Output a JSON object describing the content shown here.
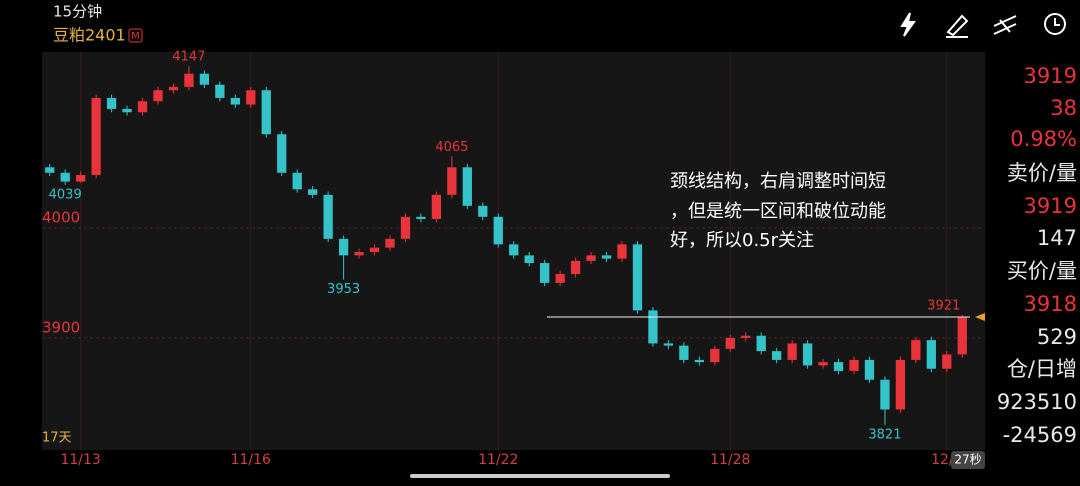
{
  "header": {
    "period": "15分钟",
    "symbol": "豆粕2401",
    "badge": "M"
  },
  "chart_data": {
    "type": "candlestick",
    "categories": [
      null,
      null,
      "11/13",
      null,
      null,
      null,
      null,
      null,
      null,
      null,
      null,
      null,
      null,
      "11/16",
      null,
      null,
      null,
      null,
      null,
      null,
      null,
      null,
      null,
      null,
      null,
      null,
      null,
      null,
      null,
      "11/22",
      null,
      null,
      null,
      null,
      null,
      null,
      null,
      null,
      null,
      null,
      null,
      null,
      null,
      null,
      "11/28",
      null,
      null,
      null,
      null,
      null,
      null,
      null,
      null,
      null,
      null,
      null,
      null,
      null,
      "12/0",
      null
    ],
    "open": [
      4055,
      4050,
      4042,
      4048,
      4118,
      4108,
      4105,
      4115,
      4125,
      4128,
      4140,
      4130,
      4118,
      4112,
      4125,
      4085,
      4050,
      4035,
      4030,
      3990,
      3975,
      3978,
      3982,
      3990,
      4010,
      4008,
      4030,
      4055,
      4020,
      4010,
      3985,
      3975,
      3968,
      3950,
      3958,
      3970,
      3975,
      3972,
      3985,
      3925,
      3895,
      3893,
      3880,
      3878,
      3890,
      3900,
      3902,
      3888,
      3880,
      3895,
      3875,
      3878,
      3870,
      3880,
      3862,
      3835,
      3880,
      3898,
      3872,
      3885
    ],
    "high": [
      4058,
      4053,
      4051,
      4121,
      4121,
      4111,
      4118,
      4128,
      4131,
      4147,
      4143,
      4133,
      4121,
      4128,
      4128,
      4088,
      4053,
      4038,
      4033,
      3993,
      3981,
      3985,
      3993,
      4013,
      4013,
      4033,
      4065,
      4058,
      4023,
      4013,
      3988,
      3978,
      3971,
      3961,
      3973,
      3978,
      3978,
      3988,
      3988,
      3928,
      3898,
      3896,
      3883,
      3893,
      3903,
      3905,
      3905,
      3891,
      3898,
      3898,
      3881,
      3881,
      3883,
      3883,
      3865,
      3883,
      3901,
      3901,
      3888,
      3921
    ],
    "low": [
      4047,
      4039,
      4041,
      4045,
      4105,
      4102,
      4102,
      4112,
      4122,
      4125,
      4127,
      4115,
      4109,
      4109,
      4082,
      4047,
      4032,
      4027,
      3987,
      3953,
      3972,
      3975,
      3979,
      3987,
      4005,
      4005,
      4027,
      4017,
      4007,
      3982,
      3972,
      3965,
      3947,
      3947,
      3955,
      3967,
      3969,
      3969,
      3922,
      3892,
      3890,
      3877,
      3875,
      3875,
      3887,
      3897,
      3885,
      3877,
      3877,
      3872,
      3872,
      3867,
      3867,
      3859,
      3821,
      3832,
      3877,
      3869,
      3869,
      3882
    ],
    "close": [
      4050,
      4042,
      4048,
      4118,
      4108,
      4105,
      4115,
      4125,
      4128,
      4140,
      4130,
      4118,
      4112,
      4125,
      4085,
      4050,
      4035,
      4030,
      3990,
      3975,
      3978,
      3982,
      3990,
      4010,
      4008,
      4030,
      4055,
      4020,
      4010,
      3985,
      3975,
      3968,
      3950,
      3958,
      3970,
      3975,
      3972,
      3985,
      3925,
      3895,
      3893,
      3880,
      3878,
      3890,
      3900,
      3902,
      3888,
      3880,
      3895,
      3875,
      3878,
      3870,
      3880,
      3862,
      3835,
      3880,
      3898,
      3872,
      3885,
      3919
    ],
    "up_color": "#e8343a",
    "down_color": "#33c3c9",
    "ylim": [
      3800,
      4157
    ],
    "yticks": [
      3900,
      4000
    ],
    "grid": true,
    "hline": 3919,
    "annotation": [
      "颈线结构，右肩调整时间短",
      "，但是统一区间和破位动能",
      "好，所以0.5r关注"
    ],
    "bar_span": "17天",
    "countdown": "27秒"
  },
  "side_panel": {
    "last": 3919,
    "change": 38,
    "change_pct": "0.98%",
    "ask_label": "卖价/量",
    "ask_price": 3919,
    "ask_volume": 147,
    "bid_label": "买价/量",
    "bid_price": 3918,
    "bid_volume": 529,
    "oi_label": "仓/日增",
    "open_interest": 923510,
    "oi_change": -24569
  }
}
